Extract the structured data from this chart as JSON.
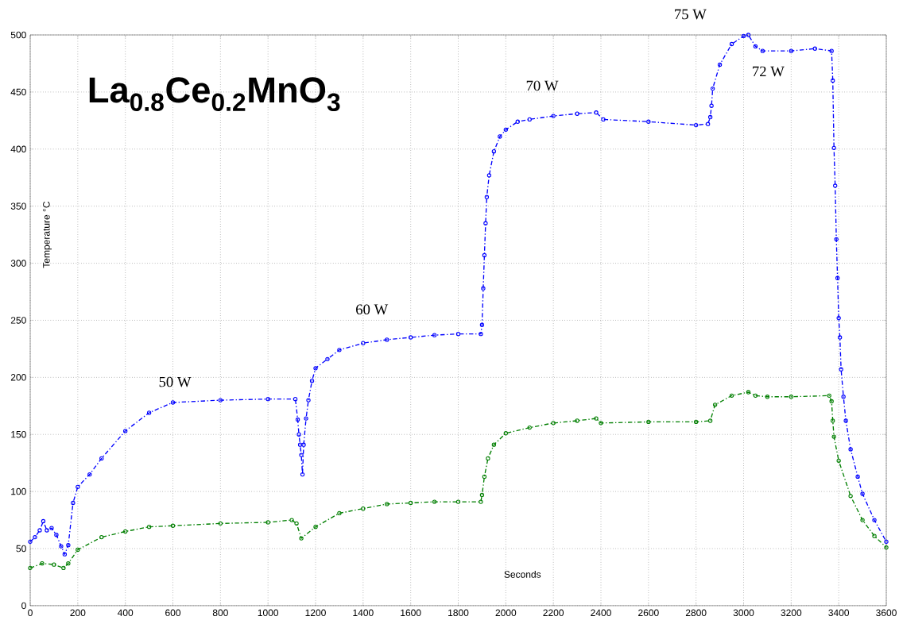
{
  "chart_data": {
    "type": "line",
    "title": "La$_{0.8}$Ce$_{0.2}$MnO$_{3}$",
    "xlabel": "Seconds",
    "ylabel": "Temperature °C",
    "annotations": [
      "50 W",
      "60 W",
      "70 W",
      "75 W",
      "72 W"
    ],
    "series": [
      {
        "color": "#0000ff",
        "x": [
          0,
          20,
          40,
          55,
          70,
          90,
          110,
          130,
          145,
          160,
          180,
          200,
          250,
          300,
          400,
          500,
          600,
          800,
          1000,
          1115,
          1125,
          1130,
          1135,
          1140,
          1145,
          1150,
          1160,
          1170,
          1185,
          1200,
          1250,
          1300,
          1400,
          1500,
          1600,
          1700,
          1800,
          1895,
          1900,
          1905,
          1910,
          1915,
          1920,
          1930,
          1950,
          1975,
          2000,
          2050,
          2100,
          2200,
          2300,
          2380,
          2410,
          2600,
          2800,
          2850,
          2860,
          2865,
          2870,
          2900,
          2950,
          3000,
          3020,
          3050,
          3080,
          3200,
          3300,
          3370,
          3375,
          3380,
          3385,
          3390,
          3395,
          3400,
          3405,
          3410,
          3420,
          3430,
          3450,
          3480,
          3500,
          3550,
          3600
        ],
        "values": [
          56,
          60,
          66,
          74,
          66,
          68,
          62,
          52,
          45,
          53,
          90,
          104,
          115,
          129,
          153,
          169,
          178,
          180,
          181,
          181,
          163,
          150,
          141,
          132,
          115,
          141,
          164,
          180,
          197,
          208,
          216,
          224,
          230,
          233,
          235,
          237,
          238,
          238,
          246,
          278,
          307,
          335,
          358,
          377,
          398,
          411,
          417,
          424,
          426,
          429,
          431,
          432,
          426,
          424,
          421,
          422,
          428,
          438,
          453,
          474,
          492,
          499,
          500,
          490,
          486,
          486,
          488,
          486,
          460,
          401,
          368,
          321,
          287,
          252,
          235,
          207,
          183,
          162,
          137,
          113,
          98,
          75,
          56
        ]
      },
      {
        "color": "#007f00",
        "x": [
          0,
          50,
          100,
          140,
          160,
          200,
          300,
          400,
          500,
          600,
          800,
          1000,
          1100,
          1120,
          1140,
          1200,
          1300,
          1400,
          1500,
          1600,
          1700,
          1800,
          1895,
          1900,
          1910,
          1925,
          1950,
          2000,
          2100,
          2200,
          2300,
          2380,
          2400,
          2600,
          2800,
          2860,
          2880,
          2950,
          3020,
          3050,
          3100,
          3200,
          3360,
          3370,
          3375,
          3380,
          3400,
          3450,
          3500,
          3550,
          3600
        ],
        "values": [
          33,
          37,
          36,
          33,
          37,
          49,
          60,
          65,
          69,
          70,
          72,
          73,
          75,
          72,
          59,
          69,
          81,
          85,
          89,
          90,
          91,
          91,
          91,
          97,
          113,
          129,
          141,
          151,
          156,
          160,
          162,
          164,
          160,
          161,
          161,
          162,
          176,
          184,
          187,
          184,
          183,
          183,
          184,
          179,
          162,
          148,
          127,
          96,
          75,
          61,
          51
        ]
      }
    ],
    "xlim": [
      0,
      3600
    ],
    "ylim": [
      0,
      500
    ],
    "xticks": [
      0,
      200,
      400,
      600,
      800,
      1000,
      1200,
      1400,
      1600,
      1800,
      2000,
      2200,
      2400,
      2600,
      2800,
      3000,
      3200,
      3400,
      3600
    ],
    "yticks": [
      0,
      50,
      100,
      150,
      200,
      250,
      300,
      350,
      400,
      450,
      500
    ],
    "grid": true,
    "marker": "circle",
    "line_style": "dashed"
  }
}
